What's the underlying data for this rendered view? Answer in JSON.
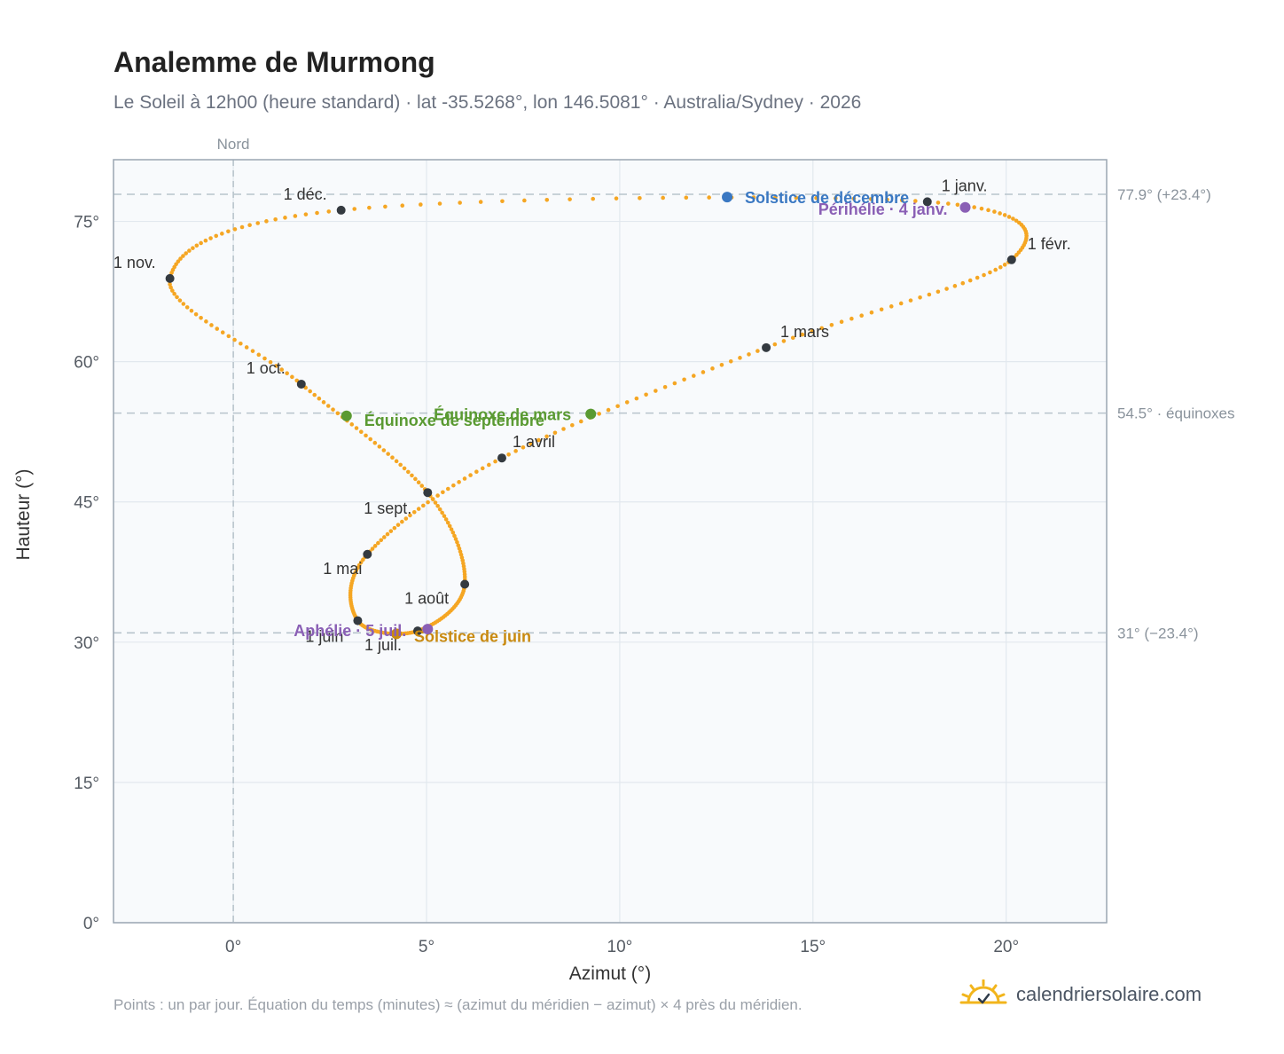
{
  "title": "Analemme de Murmong",
  "subtitle": "Le Soleil à 12h00 (heure standard) · lat -35.5268°, lon 146.5081° · Australia/Sydney · 2026",
  "footnote": "Points : un par jour. Équation du temps (minutes) ≈ (azimut du méridien − azimut) × 4 près du méridien.",
  "brand": "calendriersolaire.com",
  "colors": {
    "curve": "#f5a623",
    "month_point": "#343a40",
    "solstice_dec": "#3a78c2",
    "solstice_jun": "#c98a10",
    "equinox": "#5a9a32",
    "apsis": "#8a5fb5",
    "ref_line": "#b8c4cc",
    "plot_bg": "#f8fafc",
    "grid": "#e2e8ee"
  },
  "chart_data": {
    "type": "scatter",
    "xlabel": "Azimut (°)",
    "ylabel": "Hauteur (°)",
    "xlim": [
      -3.1,
      22.6
    ],
    "ylim": [
      0,
      81.6
    ],
    "xticks": [
      0,
      5,
      10,
      15,
      20
    ],
    "yticks": [
      0,
      15,
      30,
      45,
      60,
      75
    ],
    "xtick_labels": [
      "0°",
      "5°",
      "10°",
      "15°",
      "20°"
    ],
    "ytick_labels": [
      "0°",
      "15°",
      "30°",
      "45°",
      "60°",
      "75°"
    ],
    "grid": true,
    "north_line": {
      "x": 0,
      "label": "Nord"
    },
    "reference_lines": [
      {
        "y": 77.9,
        "label": "77.9° (+23.4°)"
      },
      {
        "y": 54.5,
        "label": "54.5° · équinoxes"
      },
      {
        "y": 31.0,
        "label": "31° (−23.4°)"
      }
    ],
    "months": [
      {
        "label": "1 janv.",
        "x": 17.96,
        "y": 77.1
      },
      {
        "label": "1 févr.",
        "x": 20.14,
        "y": 70.9
      },
      {
        "label": "1 mars",
        "x": 13.79,
        "y": 61.5
      },
      {
        "label": "1 avril",
        "x": 6.95,
        "y": 49.7
      },
      {
        "label": "1 mai",
        "x": 3.47,
        "y": 39.4
      },
      {
        "label": "1 juin",
        "x": 3.22,
        "y": 32.3
      },
      {
        "label": "1 juil.",
        "x": 4.77,
        "y": 31.2
      },
      {
        "label": "1 août",
        "x": 5.99,
        "y": 36.2
      },
      {
        "label": "1 sept.",
        "x": 5.03,
        "y": 46.0
      },
      {
        "label": "1 oct.",
        "x": 1.76,
        "y": 57.6
      },
      {
        "label": "1 nov.",
        "x": -1.64,
        "y": 68.9
      },
      {
        "label": "1 déc.",
        "x": 2.79,
        "y": 76.2
      }
    ],
    "events": [
      {
        "label": "Solstice de décembre",
        "x": 12.78,
        "y": 77.6,
        "kind": "solstice_dec"
      },
      {
        "label": "Périhélie · 4 janv.",
        "x": 18.94,
        "y": 76.5,
        "kind": "apsis"
      },
      {
        "label": "Équinoxe de mars",
        "x": 9.25,
        "y": 54.4,
        "kind": "equinox"
      },
      {
        "label": "Équinoxe de septembre",
        "x": 2.93,
        "y": 54.2,
        "kind": "equinox"
      },
      {
        "label": "Solstice de juin",
        "x": 4.22,
        "y": 30.9,
        "kind": "solstice_jun"
      },
      {
        "label": "Aphélie · 5 juil.",
        "x": 5.03,
        "y": 31.4,
        "kind": "apsis"
      }
    ]
  }
}
